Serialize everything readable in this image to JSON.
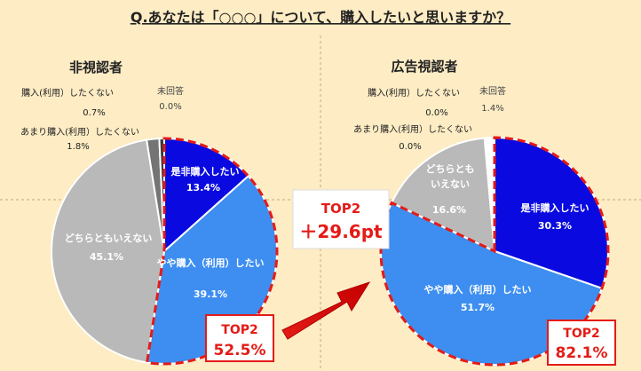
{
  "question": "Q.あなたは「○○○」について、購入したいと思いますか？",
  "colors": {
    "background": "#fdecc4",
    "buy_definitely": "#0a0ae0",
    "buy_somewhat": "#3d8ef0",
    "neutral": "#b9b9b9",
    "not_much": "#747474",
    "not_buy": "#3a3a3a",
    "no_answer": "#ffffff",
    "highlight": "#e41b17"
  },
  "chart_data": [
    {
      "type": "pie",
      "title": "非視認者",
      "categories": [
        "是非購入したい",
        "やや購入（利用）したい",
        "どちらともいえない",
        "あまり購入(利用）したくない",
        "購入(利用）したくない",
        "未回答"
      ],
      "values": [
        13.4,
        39.1,
        45.1,
        1.8,
        0.7,
        0.0
      ],
      "slice_labels": [
        {
          "name": "是非購入したい",
          "value": "13.4%"
        },
        {
          "name": "やや購入（利用）したい",
          "value": "39.1%"
        },
        {
          "name": "どちらともいえない",
          "value": "45.1%"
        },
        {
          "name": "あまり購入(利用）したくない",
          "value": "1.8%"
        },
        {
          "name": "購入(利用）したくない",
          "value": "0.7%"
        },
        {
          "name": "未回答",
          "value": "0.0%"
        }
      ],
      "top2": {
        "label": "TOP2",
        "value": "52.5%"
      }
    },
    {
      "type": "pie",
      "title": "広告視認者",
      "categories": [
        "是非購入したい",
        "やや購入（利用）したい",
        "どちらともいえない",
        "あまり購入(利用）したくない",
        "購入(利用）したくない",
        "未回答"
      ],
      "values": [
        30.3,
        51.7,
        16.6,
        0.0,
        0.0,
        1.4
      ],
      "slice_labels": [
        {
          "name": "是非購入したい",
          "value": "30.3%"
        },
        {
          "name": "やや購入（利用）したい",
          "value": "51.7%"
        },
        {
          "name": "どちらとも\nいえない",
          "value": "16.6%"
        },
        {
          "name": "あまり購入(利用）したくない",
          "value": "0.0%"
        },
        {
          "name": "購入(利用）したくない",
          "value": "0.0%"
        },
        {
          "name": "未回答",
          "value": "1.4%"
        }
      ],
      "top2": {
        "label": "TOP2",
        "value": "82.1%"
      }
    }
  ],
  "difference": {
    "label": "TOP2",
    "value": "＋29.6pt"
  }
}
